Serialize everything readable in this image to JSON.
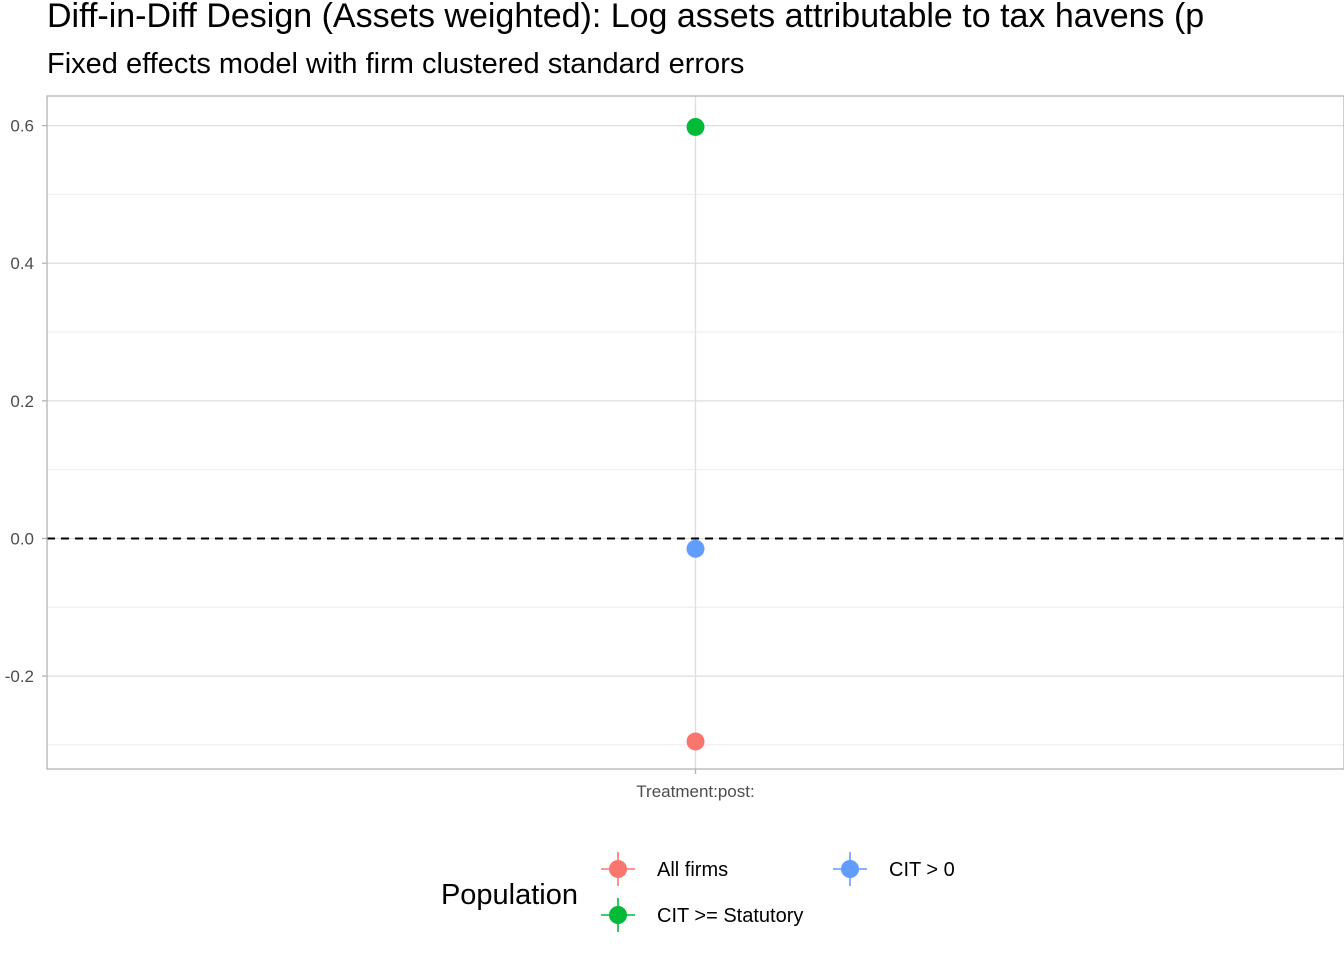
{
  "chart_data": {
    "type": "scatter",
    "title": "Diff-in-Diff Design (Assets weighted): Log assets attributable to tax havens (p",
    "subtitle": "Fixed effects model with firm clustered standard errors",
    "xlabel": "",
    "ylabel": "",
    "categories": [
      "Treatment:post:"
    ],
    "y_ticks": [
      "-0.2",
      "0.0",
      "0.2",
      "0.4",
      "0.6"
    ],
    "ylim": [
      -0.335,
      0.643
    ],
    "grid": true,
    "reference_line": 0,
    "legend": {
      "title": "Population",
      "placement": "bottom"
    },
    "series": [
      {
        "name": "All firms",
        "color": "#F8766D",
        "values": [
          -0.295
        ]
      },
      {
        "name": "CIT >= Statutory",
        "color": "#00BA38",
        "values": [
          0.598
        ]
      },
      {
        "name": "CIT > 0",
        "color": "#619CFF",
        "values": [
          -0.015
        ]
      }
    ]
  }
}
